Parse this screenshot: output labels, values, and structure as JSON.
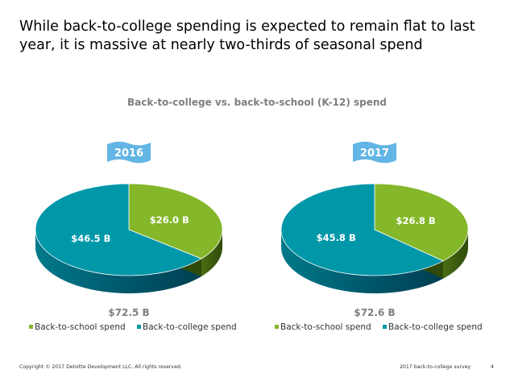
{
  "slide": {
    "title": "While back-to-college spending is expected to remain flat to last year, it is massive at nearly two-thirds of seasonal spend",
    "footer_left": "Copyright © 2017 Deloitte Development LLC. All rights reserved.",
    "footer_right": "2017 back-to-college survey",
    "page_number": "4"
  },
  "colors": {
    "school": "#84b729",
    "college": "#0097a9",
    "banner": "#62b5e5"
  },
  "chart_data": {
    "type": "pie",
    "title": "Back-to-college vs. back-to-school (K-12) spend",
    "legend": [
      "Back-to-school spend",
      "Back-to-college spend"
    ],
    "legend_position": "bottom",
    "charts": [
      {
        "year": "2016",
        "total_label": "$72.5 B",
        "slices": [
          {
            "name": "Back-to-school spend",
            "value": 26.0,
            "label": "$26.0 B"
          },
          {
            "name": "Back-to-college spend",
            "value": 46.5,
            "label": "$46.5 B"
          }
        ]
      },
      {
        "year": "2017",
        "total_label": "$72.6 B",
        "slices": [
          {
            "name": "Back-to-school spend",
            "value": 26.8,
            "label": "$26.8 B"
          },
          {
            "name": "Back-to-college spend",
            "value": 45.8,
            "label": "$45.8 B"
          }
        ]
      }
    ]
  }
}
